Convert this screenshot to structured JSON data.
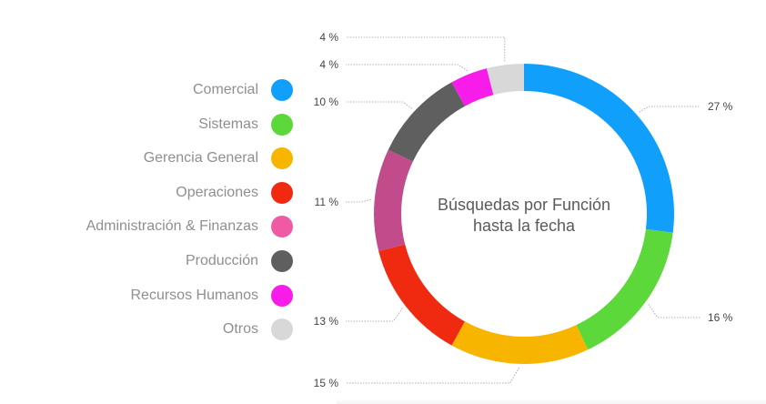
{
  "chart_data": {
    "type": "pie",
    "variant": "donut",
    "title": "Búsquedas por Función",
    "subtitle": "hasta la fecha",
    "categories": [
      "Comercial",
      "Sistemas",
      "Gerencia General",
      "Operaciones",
      "Administración & Finanzas",
      "Producción",
      "Recursos Humanos",
      "Otros"
    ],
    "values": [
      27,
      16,
      15,
      13,
      11,
      10,
      4,
      4
    ],
    "value_labels": [
      "27 %",
      "16 %",
      "15 %",
      "13 %",
      "11 %",
      "10 %",
      "4 %",
      "4 %"
    ],
    "colors": [
      "#119ffc",
      "#5cd83a",
      "#f8b500",
      "#f02a10",
      "#c24c8b",
      "#5f5f5f",
      "#f71ce9",
      "#d8d8d8"
    ],
    "legend_colors": [
      "#119ffc",
      "#5cd83a",
      "#f8b500",
      "#f02a10",
      "#ef5aa5",
      "#5f5f5f",
      "#f71ce9",
      "#d8d8d8"
    ],
    "legend_position": "left"
  }
}
